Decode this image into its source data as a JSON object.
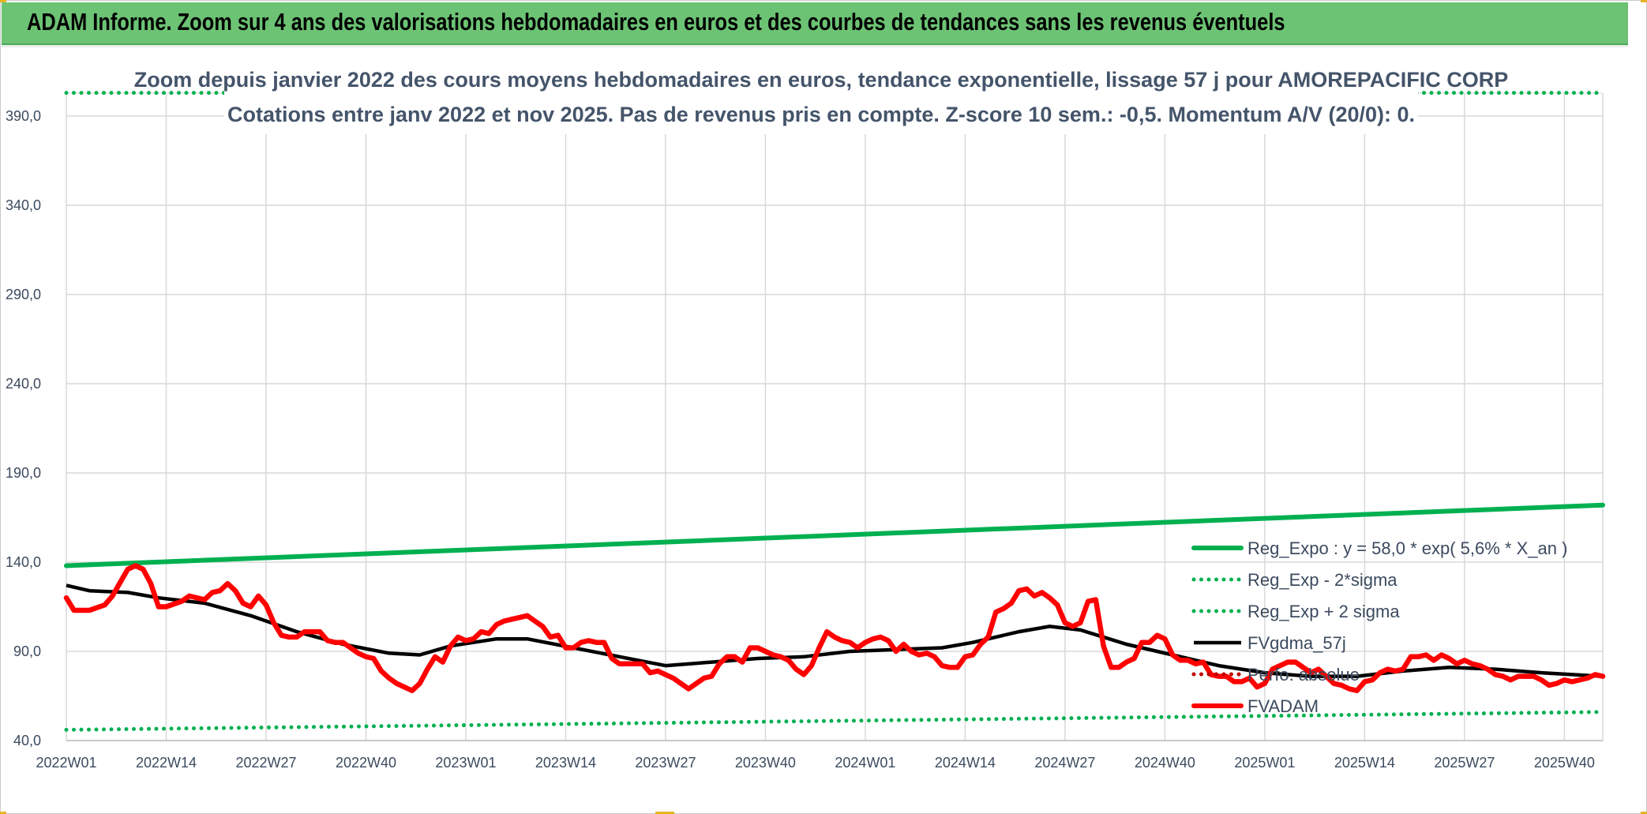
{
  "banner": {
    "title": "ADAM Informe. Zoom sur 4 ans des valorisations hebdomadaires en euros et des courbes de tendances sans les revenus éventuels"
  },
  "colors": {
    "banner_bg": "#6cc374",
    "regression": "#00b050",
    "moving_average": "#000000",
    "price": "#ff0000",
    "perf": "#c00000",
    "grid": "#d9d9d9",
    "title_text": "#44546a"
  },
  "chart_data": {
    "type": "line",
    "title": [
      "Zoom depuis janvier 2022 des cours moyens hebdomadaires en euros, tendance exponentielle, lissage 57 j pour AMOREPACIFIC CORP",
      "Cotations entre janv 2022 et nov 2025. Pas de revenus pris en compte. Z-score 10 sem.: -0,5. Momentum A/V (20/0): 0."
    ],
    "ylim": [
      40,
      400
    ],
    "y_ticks": [
      "40,0",
      "90,0",
      "140,0",
      "190,0",
      "240,0",
      "290,0",
      "340,0",
      "390,0"
    ],
    "y_tick_values": [
      40,
      90,
      140,
      190,
      240,
      290,
      340,
      390
    ],
    "x_range": [
      0,
      200
    ],
    "x_ticks": [
      "2022W01",
      "2022W14",
      "2022W27",
      "2022W40",
      "2023W01",
      "2023W14",
      "2023W27",
      "2023W40",
      "2024W01",
      "2024W14",
      "2024W27",
      "2024W40",
      "2025W01",
      "2025W14",
      "2025W27",
      "2025W40"
    ],
    "x_tick_positions": [
      0,
      13,
      26,
      39,
      52,
      65,
      78,
      91,
      104,
      117,
      130,
      143,
      156,
      169,
      182,
      195
    ],
    "legend": [
      {
        "key": "reg_expo",
        "label": "Reg_Expo : y = 58,0 * exp( 5,6% *  X_an )",
        "style": "solid-thick",
        "color": "#00b050"
      },
      {
        "key": "reg_minus",
        "label": "Reg_Exp - 2*sigma",
        "style": "dotted",
        "color": "#00b050"
      },
      {
        "key": "reg_plus",
        "label": "Reg_Exp + 2 sigma",
        "style": "dotted",
        "color": "#00b050"
      },
      {
        "key": "fvgdma",
        "label": "FVgdma_57j",
        "style": "solid",
        "color": "#000000"
      },
      {
        "key": "perf",
        "label": "Perfo. absolue",
        "style": "dotted",
        "color": "#c00000"
      },
      {
        "key": "fvadam",
        "label": "FVADAM",
        "style": "solid-thick",
        "color": "#ff0000"
      }
    ],
    "series": [
      {
        "name": "Reg_Expo",
        "key": "reg_expo",
        "points": [
          [
            0,
            138
          ],
          [
            200,
            172
          ]
        ]
      },
      {
        "name": "Reg_Exp - 2*sigma",
        "key": "reg_minus",
        "points": [
          [
            0,
            46
          ],
          [
            200,
            56
          ]
        ]
      },
      {
        "name": "Reg_Exp + 2 sigma",
        "key": "reg_plus",
        "points": [
          [
            0,
            403
          ],
          [
            200,
            403
          ]
        ]
      },
      {
        "name": "FVgdma_57j",
        "key": "fvgdma",
        "points": [
          [
            0,
            127
          ],
          [
            3,
            124
          ],
          [
            8,
            123
          ],
          [
            12,
            120
          ],
          [
            18,
            117
          ],
          [
            24,
            110
          ],
          [
            30,
            101
          ],
          [
            36,
            94
          ],
          [
            42,
            89
          ],
          [
            46,
            88
          ],
          [
            50,
            93
          ],
          [
            56,
            97
          ],
          [
            60,
            97
          ],
          [
            66,
            92
          ],
          [
            72,
            87
          ],
          [
            78,
            82
          ],
          [
            84,
            84
          ],
          [
            90,
            86
          ],
          [
            96,
            87
          ],
          [
            102,
            90
          ],
          [
            108,
            91
          ],
          [
            114,
            92
          ],
          [
            118,
            95
          ],
          [
            124,
            101
          ],
          [
            128,
            104
          ],
          [
            132,
            102
          ],
          [
            138,
            94
          ],
          [
            144,
            88
          ],
          [
            150,
            82
          ],
          [
            156,
            78
          ],
          [
            162,
            76
          ],
          [
            168,
            76
          ],
          [
            174,
            79
          ],
          [
            180,
            81
          ],
          [
            186,
            80
          ],
          [
            192,
            78
          ],
          [
            200,
            76
          ]
        ]
      },
      {
        "name": "FVADAM",
        "key": "fvadam",
        "points": [
          [
            0,
            120
          ],
          [
            1,
            113
          ],
          [
            3,
            113
          ],
          [
            5,
            116
          ],
          [
            6,
            121
          ],
          [
            8,
            136
          ],
          [
            9,
            138
          ],
          [
            10,
            136
          ],
          [
            11,
            128
          ],
          [
            12,
            115
          ],
          [
            13,
            115
          ],
          [
            15,
            118
          ],
          [
            16,
            121
          ],
          [
            17,
            120
          ],
          [
            18,
            119
          ],
          [
            19,
            123
          ],
          [
            20,
            124
          ],
          [
            21,
            128
          ],
          [
            22,
            124
          ],
          [
            23,
            117
          ],
          [
            24,
            115
          ],
          [
            25,
            121
          ],
          [
            26,
            116
          ],
          [
            27,
            106
          ],
          [
            28,
            99
          ],
          [
            29,
            98
          ],
          [
            30,
            98
          ],
          [
            31,
            101
          ],
          [
            32,
            101
          ],
          [
            33,
            101
          ],
          [
            34,
            96
          ],
          [
            35,
            95
          ],
          [
            36,
            95
          ],
          [
            37,
            92
          ],
          [
            38,
            89
          ],
          [
            39,
            87
          ],
          [
            40,
            86
          ],
          [
            41,
            79
          ],
          [
            42,
            75
          ],
          [
            43,
            72
          ],
          [
            44,
            70
          ],
          [
            45,
            68
          ],
          [
            46,
            72
          ],
          [
            47,
            80
          ],
          [
            48,
            87
          ],
          [
            49,
            84
          ],
          [
            50,
            93
          ],
          [
            51,
            98
          ],
          [
            52,
            96
          ],
          [
            53,
            97
          ],
          [
            54,
            101
          ],
          [
            55,
            100
          ],
          [
            56,
            105
          ],
          [
            57,
            107
          ],
          [
            58,
            108
          ],
          [
            59,
            109
          ],
          [
            60,
            110
          ],
          [
            61,
            107
          ],
          [
            62,
            104
          ],
          [
            63,
            98
          ],
          [
            64,
            99
          ],
          [
            65,
            92
          ],
          [
            66,
            92
          ],
          [
            67,
            95
          ],
          [
            68,
            96
          ],
          [
            69,
            95
          ],
          [
            70,
            95
          ],
          [
            71,
            86
          ],
          [
            72,
            83
          ],
          [
            73,
            83
          ],
          [
            74,
            83
          ],
          [
            75,
            83
          ],
          [
            76,
            78
          ],
          [
            77,
            79
          ],
          [
            78,
            77
          ],
          [
            79,
            75
          ],
          [
            80,
            72
          ],
          [
            81,
            69
          ],
          [
            82,
            72
          ],
          [
            83,
            75
          ],
          [
            84,
            76
          ],
          [
            85,
            83
          ],
          [
            86,
            87
          ],
          [
            87,
            87
          ],
          [
            88,
            84
          ],
          [
            89,
            92
          ],
          [
            90,
            92
          ],
          [
            91,
            90
          ],
          [
            92,
            88
          ],
          [
            93,
            87
          ],
          [
            94,
            85
          ],
          [
            95,
            80
          ],
          [
            96,
            77
          ],
          [
            97,
            82
          ],
          [
            98,
            92
          ],
          [
            99,
            101
          ],
          [
            100,
            98
          ],
          [
            101,
            96
          ],
          [
            102,
            95
          ],
          [
            103,
            92
          ],
          [
            104,
            95
          ],
          [
            105,
            97
          ],
          [
            106,
            98
          ],
          [
            107,
            96
          ],
          [
            108,
            90
          ],
          [
            109,
            94
          ],
          [
            110,
            90
          ],
          [
            111,
            88
          ],
          [
            112,
            89
          ],
          [
            113,
            87
          ],
          [
            114,
            82
          ],
          [
            115,
            81
          ],
          [
            116,
            81
          ],
          [
            117,
            87
          ],
          [
            118,
            88
          ],
          [
            119,
            94
          ],
          [
            120,
            98
          ],
          [
            121,
            112
          ],
          [
            122,
            114
          ],
          [
            123,
            117
          ],
          [
            124,
            124
          ],
          [
            125,
            125
          ],
          [
            126,
            121
          ],
          [
            127,
            123
          ],
          [
            128,
            120
          ],
          [
            129,
            116
          ],
          [
            130,
            106
          ],
          [
            131,
            104
          ],
          [
            132,
            106
          ],
          [
            133,
            118
          ],
          [
            134,
            119
          ],
          [
            135,
            93
          ],
          [
            136,
            81
          ],
          [
            137,
            81
          ],
          [
            138,
            84
          ],
          [
            139,
            86
          ],
          [
            140,
            95
          ],
          [
            141,
            95
          ],
          [
            142,
            99
          ],
          [
            143,
            97
          ],
          [
            144,
            88
          ],
          [
            145,
            85
          ],
          [
            146,
            85
          ],
          [
            147,
            83
          ],
          [
            148,
            84
          ],
          [
            149,
            77
          ],
          [
            150,
            76
          ],
          [
            151,
            76
          ],
          [
            152,
            73
          ],
          [
            153,
            73
          ],
          [
            154,
            75
          ],
          [
            155,
            70
          ],
          [
            156,
            72
          ],
          [
            157,
            80
          ],
          [
            158,
            82
          ],
          [
            159,
            84
          ],
          [
            160,
            84
          ],
          [
            161,
            81
          ],
          [
            162,
            78
          ],
          [
            163,
            80
          ],
          [
            164,
            76
          ],
          [
            165,
            72
          ],
          [
            166,
            71
          ],
          [
            167,
            69
          ],
          [
            168,
            68
          ],
          [
            169,
            73
          ],
          [
            170,
            74
          ],
          [
            171,
            78
          ],
          [
            172,
            80
          ],
          [
            173,
            79
          ],
          [
            174,
            80
          ],
          [
            175,
            87
          ],
          [
            176,
            87
          ],
          [
            177,
            88
          ],
          [
            178,
            85
          ],
          [
            179,
            88
          ],
          [
            180,
            86
          ],
          [
            181,
            83
          ],
          [
            182,
            85
          ],
          [
            183,
            83
          ],
          [
            184,
            82
          ],
          [
            185,
            80
          ],
          [
            186,
            77
          ],
          [
            187,
            76
          ],
          [
            188,
            74
          ],
          [
            189,
            76
          ],
          [
            190,
            76
          ],
          [
            191,
            76
          ],
          [
            192,
            74
          ],
          [
            193,
            71
          ],
          [
            194,
            72
          ],
          [
            195,
            74
          ],
          [
            196,
            73
          ],
          [
            197,
            74
          ],
          [
            198,
            75
          ],
          [
            199,
            77
          ],
          [
            200,
            76
          ]
        ]
      }
    ]
  }
}
